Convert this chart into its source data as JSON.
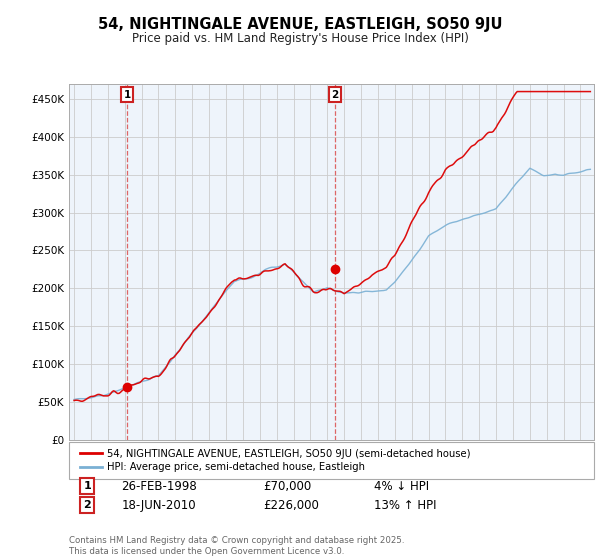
{
  "title": "54, NIGHTINGALE AVENUE, EASTLEIGH, SO50 9JU",
  "subtitle": "Price paid vs. HM Land Registry's House Price Index (HPI)",
  "legend_line1": "54, NIGHTINGALE AVENUE, EASTLEIGH, SO50 9JU (semi-detached house)",
  "legend_line2": "HPI: Average price, semi-detached house, Eastleigh",
  "transaction1_date": "26-FEB-1998",
  "transaction1_price": "£70,000",
  "transaction1_hpi": "4% ↓ HPI",
  "transaction2_date": "18-JUN-2010",
  "transaction2_price": "£226,000",
  "transaction2_hpi": "13% ↑ HPI",
  "footer": "Contains HM Land Registry data © Crown copyright and database right 2025.\nThis data is licensed under the Open Government Licence v3.0.",
  "line_color_red": "#dd0000",
  "line_color_blue": "#7ab0d4",
  "grid_color": "#cccccc",
  "background_color": "#ffffff",
  "plot_bg_color": "#eef4fb",
  "sale1_x": 1998.15,
  "sale1_y": 70000,
  "sale2_x": 2010.46,
  "sale2_y": 226000,
  "ylim": [
    0,
    470000
  ],
  "yticks": [
    0,
    50000,
    100000,
    150000,
    200000,
    250000,
    300000,
    350000,
    400000,
    450000
  ],
  "xlim_left": 1994.7,
  "xlim_right": 2025.8
}
